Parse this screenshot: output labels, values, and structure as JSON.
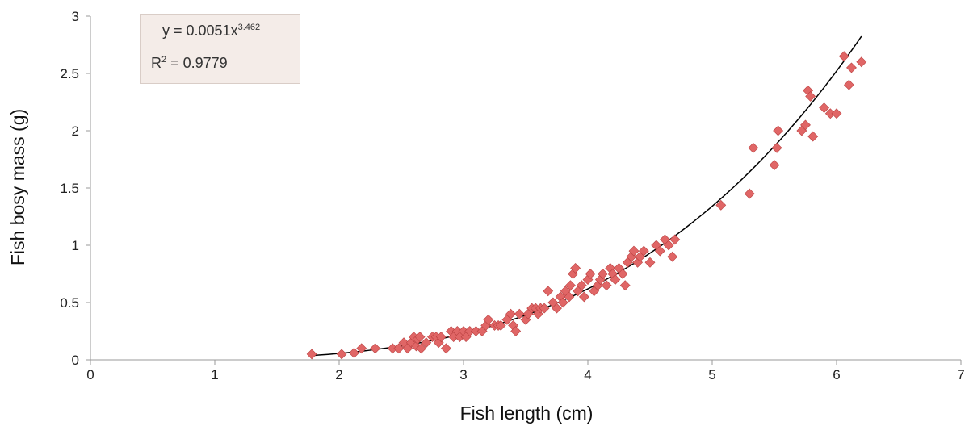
{
  "chart_data": {
    "type": "scatter",
    "xlabel": "Fish length (cm)",
    "ylabel": "Fish bosy mass (g)",
    "xlim": [
      0,
      7
    ],
    "ylim": [
      0,
      3
    ],
    "x_ticks": [
      "0",
      "1",
      "2",
      "3",
      "4",
      "5",
      "6",
      "7"
    ],
    "y_ticks": [
      "0",
      "0.5",
      "1",
      "1.5",
      "2",
      "2.5",
      "3"
    ],
    "grid": false,
    "legend": "none",
    "marker_color": "#e06666",
    "marker_edge": "#b94040",
    "trendline_color": "#000000",
    "trendline": {
      "type": "power",
      "a": 0.0051,
      "b": 3.462,
      "x_range": [
        1.8,
        6.2
      ],
      "equation_text": "y = 0.0051x",
      "equation_exponent": "3.462",
      "r2_prefix": "R",
      "r2_exponent": "2",
      "r2_value": " = 0.9779"
    },
    "points": [
      [
        1.78,
        0.05
      ],
      [
        2.02,
        0.05
      ],
      [
        2.12,
        0.06
      ],
      [
        2.18,
        0.1
      ],
      [
        2.29,
        0.1
      ],
      [
        2.43,
        0.1
      ],
      [
        2.48,
        0.1
      ],
      [
        2.52,
        0.15
      ],
      [
        2.55,
        0.1
      ],
      [
        2.58,
        0.15
      ],
      [
        2.6,
        0.2
      ],
      [
        2.62,
        0.12
      ],
      [
        2.63,
        0.18
      ],
      [
        2.65,
        0.2
      ],
      [
        2.66,
        0.1
      ],
      [
        2.7,
        0.15
      ],
      [
        2.75,
        0.2
      ],
      [
        2.78,
        0.2
      ],
      [
        2.8,
        0.15
      ],
      [
        2.82,
        0.2
      ],
      [
        2.86,
        0.1
      ],
      [
        2.9,
        0.25
      ],
      [
        2.92,
        0.2
      ],
      [
        2.95,
        0.25
      ],
      [
        2.97,
        0.2
      ],
      [
        3.0,
        0.25
      ],
      [
        3.02,
        0.2
      ],
      [
        3.05,
        0.25
      ],
      [
        3.1,
        0.25
      ],
      [
        3.15,
        0.25
      ],
      [
        3.18,
        0.3
      ],
      [
        3.2,
        0.35
      ],
      [
        3.25,
        0.3
      ],
      [
        3.28,
        0.3
      ],
      [
        3.3,
        0.3
      ],
      [
        3.35,
        0.35
      ],
      [
        3.38,
        0.4
      ],
      [
        3.4,
        0.3
      ],
      [
        3.42,
        0.25
      ],
      [
        3.45,
        0.4
      ],
      [
        3.5,
        0.35
      ],
      [
        3.52,
        0.4
      ],
      [
        3.55,
        0.45
      ],
      [
        3.58,
        0.45
      ],
      [
        3.6,
        0.4
      ],
      [
        3.62,
        0.45
      ],
      [
        3.65,
        0.45
      ],
      [
        3.68,
        0.6
      ],
      [
        3.72,
        0.5
      ],
      [
        3.75,
        0.45
      ],
      [
        3.78,
        0.55
      ],
      [
        3.8,
        0.5
      ],
      [
        3.82,
        0.6
      ],
      [
        3.85,
        0.55
      ],
      [
        3.86,
        0.65
      ],
      [
        3.88,
        0.75
      ],
      [
        3.9,
        0.8
      ],
      [
        3.92,
        0.6
      ],
      [
        3.95,
        0.65
      ],
      [
        3.97,
        0.55
      ],
      [
        4.0,
        0.7
      ],
      [
        4.02,
        0.75
      ],
      [
        4.05,
        0.6
      ],
      [
        4.08,
        0.65
      ],
      [
        4.1,
        0.7
      ],
      [
        4.12,
        0.75
      ],
      [
        4.15,
        0.65
      ],
      [
        4.18,
        0.8
      ],
      [
        4.2,
        0.75
      ],
      [
        4.22,
        0.7
      ],
      [
        4.25,
        0.8
      ],
      [
        4.28,
        0.75
      ],
      [
        4.3,
        0.65
      ],
      [
        4.32,
        0.85
      ],
      [
        4.35,
        0.9
      ],
      [
        4.37,
        0.95
      ],
      [
        4.4,
        0.85
      ],
      [
        4.42,
        0.9
      ],
      [
        4.45,
        0.95
      ],
      [
        4.5,
        0.85
      ],
      [
        4.55,
        1.0
      ],
      [
        4.58,
        0.95
      ],
      [
        4.62,
        1.05
      ],
      [
        4.65,
        1.0
      ],
      [
        4.68,
        0.9
      ],
      [
        4.7,
        1.05
      ],
      [
        5.07,
        1.35
      ],
      [
        5.3,
        1.45
      ],
      [
        5.33,
        1.85
      ],
      [
        5.5,
        1.7
      ],
      [
        5.52,
        1.85
      ],
      [
        5.53,
        2.0
      ],
      [
        5.72,
        2.0
      ],
      [
        5.75,
        2.05
      ],
      [
        5.77,
        2.35
      ],
      [
        5.79,
        2.3
      ],
      [
        5.81,
        1.95
      ],
      [
        5.9,
        2.2
      ],
      [
        5.95,
        2.15
      ],
      [
        6.0,
        2.15
      ],
      [
        6.06,
        2.65
      ],
      [
        6.1,
        2.4
      ],
      [
        6.12,
        2.55
      ],
      [
        6.2,
        2.6
      ]
    ]
  }
}
